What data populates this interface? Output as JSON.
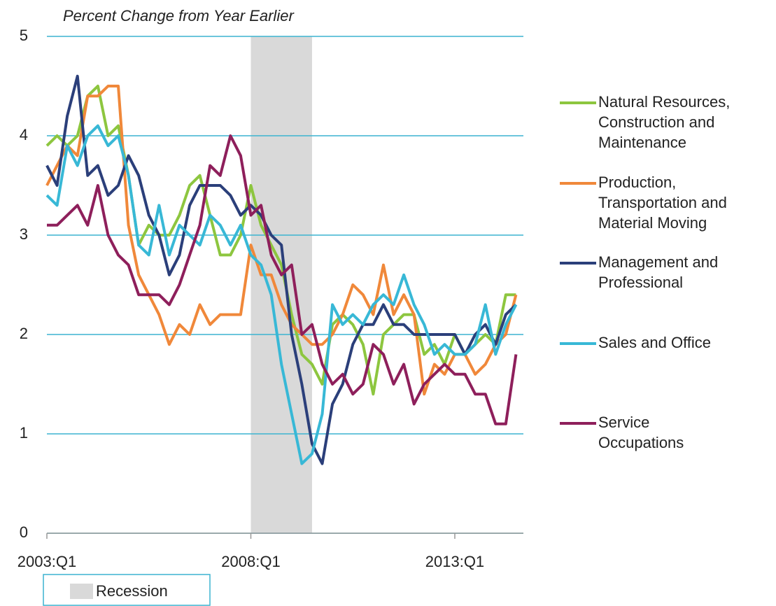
{
  "chart_data": {
    "type": "line",
    "title": "Percent Change from  Year Earlier",
    "x": [
      0,
      1,
      2,
      3,
      4,
      5,
      6,
      7,
      8,
      9,
      10,
      11,
      12,
      13,
      14,
      15,
      16,
      17,
      18,
      19,
      20,
      21,
      22,
      23,
      24,
      25,
      26,
      27,
      28,
      29,
      30,
      31,
      32,
      33,
      34,
      35,
      36,
      37,
      38,
      39,
      40,
      41,
      42,
      43,
      44,
      45,
      46
    ],
    "xlim": [
      0,
      47
    ],
    "xticks": [
      {
        "value": 0,
        "label": "2003:Q1"
      },
      {
        "value": 20,
        "label": "2008:Q1"
      },
      {
        "value": 40,
        "label": "2013:Q1"
      }
    ],
    "ylim": [
      0,
      5
    ],
    "yticks": [
      0,
      1,
      2,
      3,
      4,
      5
    ],
    "grid": true,
    "recession": {
      "name": "Recession",
      "span": [
        20,
        26
      ],
      "color": "#d9d9d9"
    },
    "series": [
      {
        "name": "Natural Resources, Construction and Maintenance",
        "color": "#8dc63f",
        "values": [
          3.9,
          4.0,
          3.9,
          4.0,
          4.4,
          4.5,
          4.0,
          4.1,
          3.6,
          2.9,
          3.1,
          3.0,
          3.0,
          3.2,
          3.5,
          3.6,
          3.2,
          2.8,
          2.8,
          3.0,
          3.5,
          3.1,
          2.9,
          2.7,
          2.2,
          1.8,
          1.7,
          1.5,
          2.1,
          2.2,
          2.1,
          1.9,
          1.4,
          2.0,
          2.1,
          2.2,
          2.2,
          1.8,
          1.9,
          1.7,
          2.0,
          1.8,
          1.9,
          2.0,
          1.9,
          2.4,
          2.4
        ]
      },
      {
        "name": "Production, Transportation and Material Moving",
        "color": "#f0883a",
        "values": [
          3.5,
          3.7,
          3.9,
          3.8,
          4.4,
          4.4,
          4.5,
          4.5,
          3.1,
          2.6,
          2.4,
          2.2,
          1.9,
          2.1,
          2.0,
          2.3,
          2.1,
          2.2,
          2.2,
          2.2,
          2.9,
          2.6,
          2.6,
          2.3,
          2.1,
          2.0,
          1.9,
          1.9,
          2.0,
          2.2,
          2.5,
          2.4,
          2.2,
          2.7,
          2.2,
          2.4,
          2.2,
          1.4,
          1.7,
          1.6,
          1.8,
          1.8,
          1.6,
          1.7,
          1.9,
          2.0,
          2.4
        ]
      },
      {
        "name": "Management and Professional",
        "color": "#2b3f7a",
        "values": [
          3.7,
          3.5,
          4.2,
          4.6,
          3.6,
          3.7,
          3.4,
          3.5,
          3.8,
          3.6,
          3.2,
          3.0,
          2.6,
          2.8,
          3.3,
          3.5,
          3.5,
          3.5,
          3.4,
          3.2,
          3.3,
          3.2,
          3.0,
          2.9,
          2.0,
          1.5,
          0.9,
          0.7,
          1.3,
          1.5,
          1.9,
          2.1,
          2.1,
          2.3,
          2.1,
          2.1,
          2.0,
          2.0,
          2.0,
          2.0,
          2.0,
          1.8,
          2.0,
          2.1,
          1.9,
          2.2,
          2.3
        ]
      },
      {
        "name": "Sales and Office",
        "color": "#38b8d6",
        "values": [
          3.4,
          3.3,
          3.9,
          3.7,
          4.0,
          4.1,
          3.9,
          4.0,
          3.6,
          2.9,
          2.8,
          3.3,
          2.8,
          3.1,
          3.0,
          2.9,
          3.2,
          3.1,
          2.9,
          3.1,
          2.8,
          2.7,
          2.4,
          1.7,
          1.2,
          0.7,
          0.8,
          1.2,
          2.3,
          2.1,
          2.2,
          2.1,
          2.3,
          2.4,
          2.3,
          2.6,
          2.3,
          2.1,
          1.8,
          1.9,
          1.8,
          1.8,
          1.9,
          2.3,
          1.8,
          2.1,
          2.3
        ]
      },
      {
        "name": "Service Occupations",
        "color": "#8e1f5b",
        "values": [
          3.1,
          3.1,
          3.2,
          3.3,
          3.1,
          3.5,
          3.0,
          2.8,
          2.7,
          2.4,
          2.4,
          2.4,
          2.3,
          2.5,
          2.8,
          3.1,
          3.7,
          3.6,
          4.0,
          3.8,
          3.2,
          3.3,
          2.8,
          2.6,
          2.7,
          2.0,
          2.1,
          1.7,
          1.5,
          1.6,
          1.4,
          1.5,
          1.9,
          1.8,
          1.5,
          1.7,
          1.3,
          1.5,
          1.6,
          1.7,
          1.6,
          1.6,
          1.4,
          1.4,
          1.1,
          1.1,
          1.8
        ]
      }
    ]
  }
}
